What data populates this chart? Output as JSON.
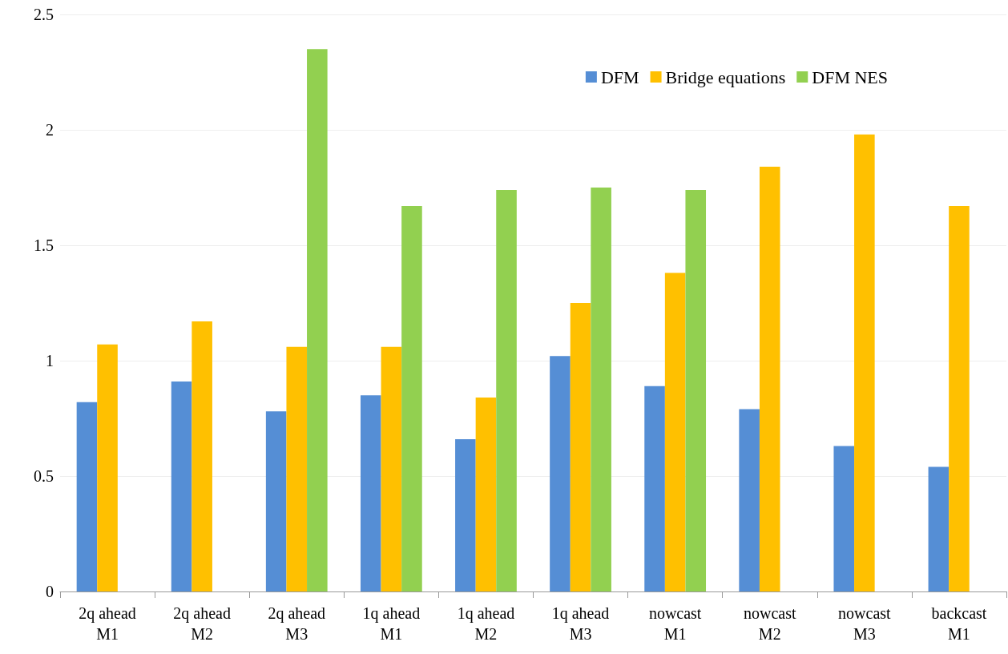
{
  "chart_data": {
    "type": "bar",
    "categories": [
      "2q ahead\nM1",
      "2q ahead\nM2",
      "2q ahead\nM3",
      "1q ahead\nM1",
      "1q ahead\nM2",
      "1q ahead\nM3",
      "nowcast\nM1",
      "nowcast\nM2",
      "nowcast\nM3",
      "backcast\nM1"
    ],
    "series": [
      {
        "name": "DFM",
        "color": "#558ed5",
        "values": [
          0.82,
          0.91,
          0.78,
          0.85,
          0.66,
          1.02,
          0.89,
          0.79,
          0.63,
          0.54
        ]
      },
      {
        "name": "Bridge equations",
        "color": "#ffc000",
        "values": [
          1.07,
          1.17,
          1.06,
          1.06,
          0.84,
          1.25,
          1.38,
          1.84,
          1.98,
          1.67
        ]
      },
      {
        "name": "DFM NES",
        "color": "#92d050",
        "values": [
          null,
          null,
          2.35,
          1.67,
          1.74,
          1.75,
          1.74,
          null,
          null,
          null
        ]
      }
    ],
    "ylim": [
      0,
      2.5
    ],
    "yticks": [
      0,
      0.5,
      1,
      1.5,
      2,
      2.5
    ],
    "grid": "y",
    "legend": "top right"
  }
}
